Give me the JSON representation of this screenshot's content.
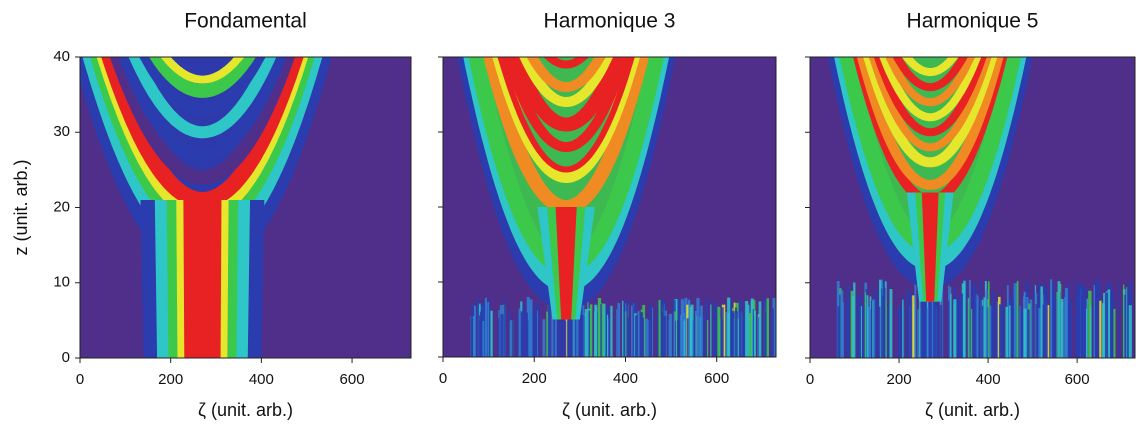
{
  "chart_data": [
    {
      "type": "heatmap",
      "title": "Fondamental",
      "xlabel": "ζ (unit. arb.)",
      "ylabel": "z (unit. arb.)",
      "xlim": [
        0,
        730
      ],
      "xticks": [
        0,
        200,
        400,
        600
      ],
      "ylim": [
        0,
        40
      ],
      "yticks": [
        0,
        10,
        20,
        30,
        40
      ],
      "show_ytick_labels": true
    },
    {
      "type": "heatmap",
      "title": "Harmonique 3",
      "xlabel": "ζ (unit. arb.)",
      "xlim": [
        0,
        730
      ],
      "xticks": [
        0,
        200,
        400,
        600
      ],
      "ylim": [
        0,
        40
      ],
      "yticks": [
        0,
        10,
        20,
        30,
        40
      ],
      "show_ytick_labels": false
    },
    {
      "type": "heatmap",
      "title": "Harmonique 5",
      "xlabel": "ζ (unit. arb.)",
      "xlim": [
        0,
        730
      ],
      "xticks": [
        0,
        200,
        400,
        600
      ],
      "ylim": [
        0,
        40
      ],
      "yticks": [
        0,
        10,
        20,
        30,
        40
      ],
      "show_ytick_labels": false
    }
  ]
}
